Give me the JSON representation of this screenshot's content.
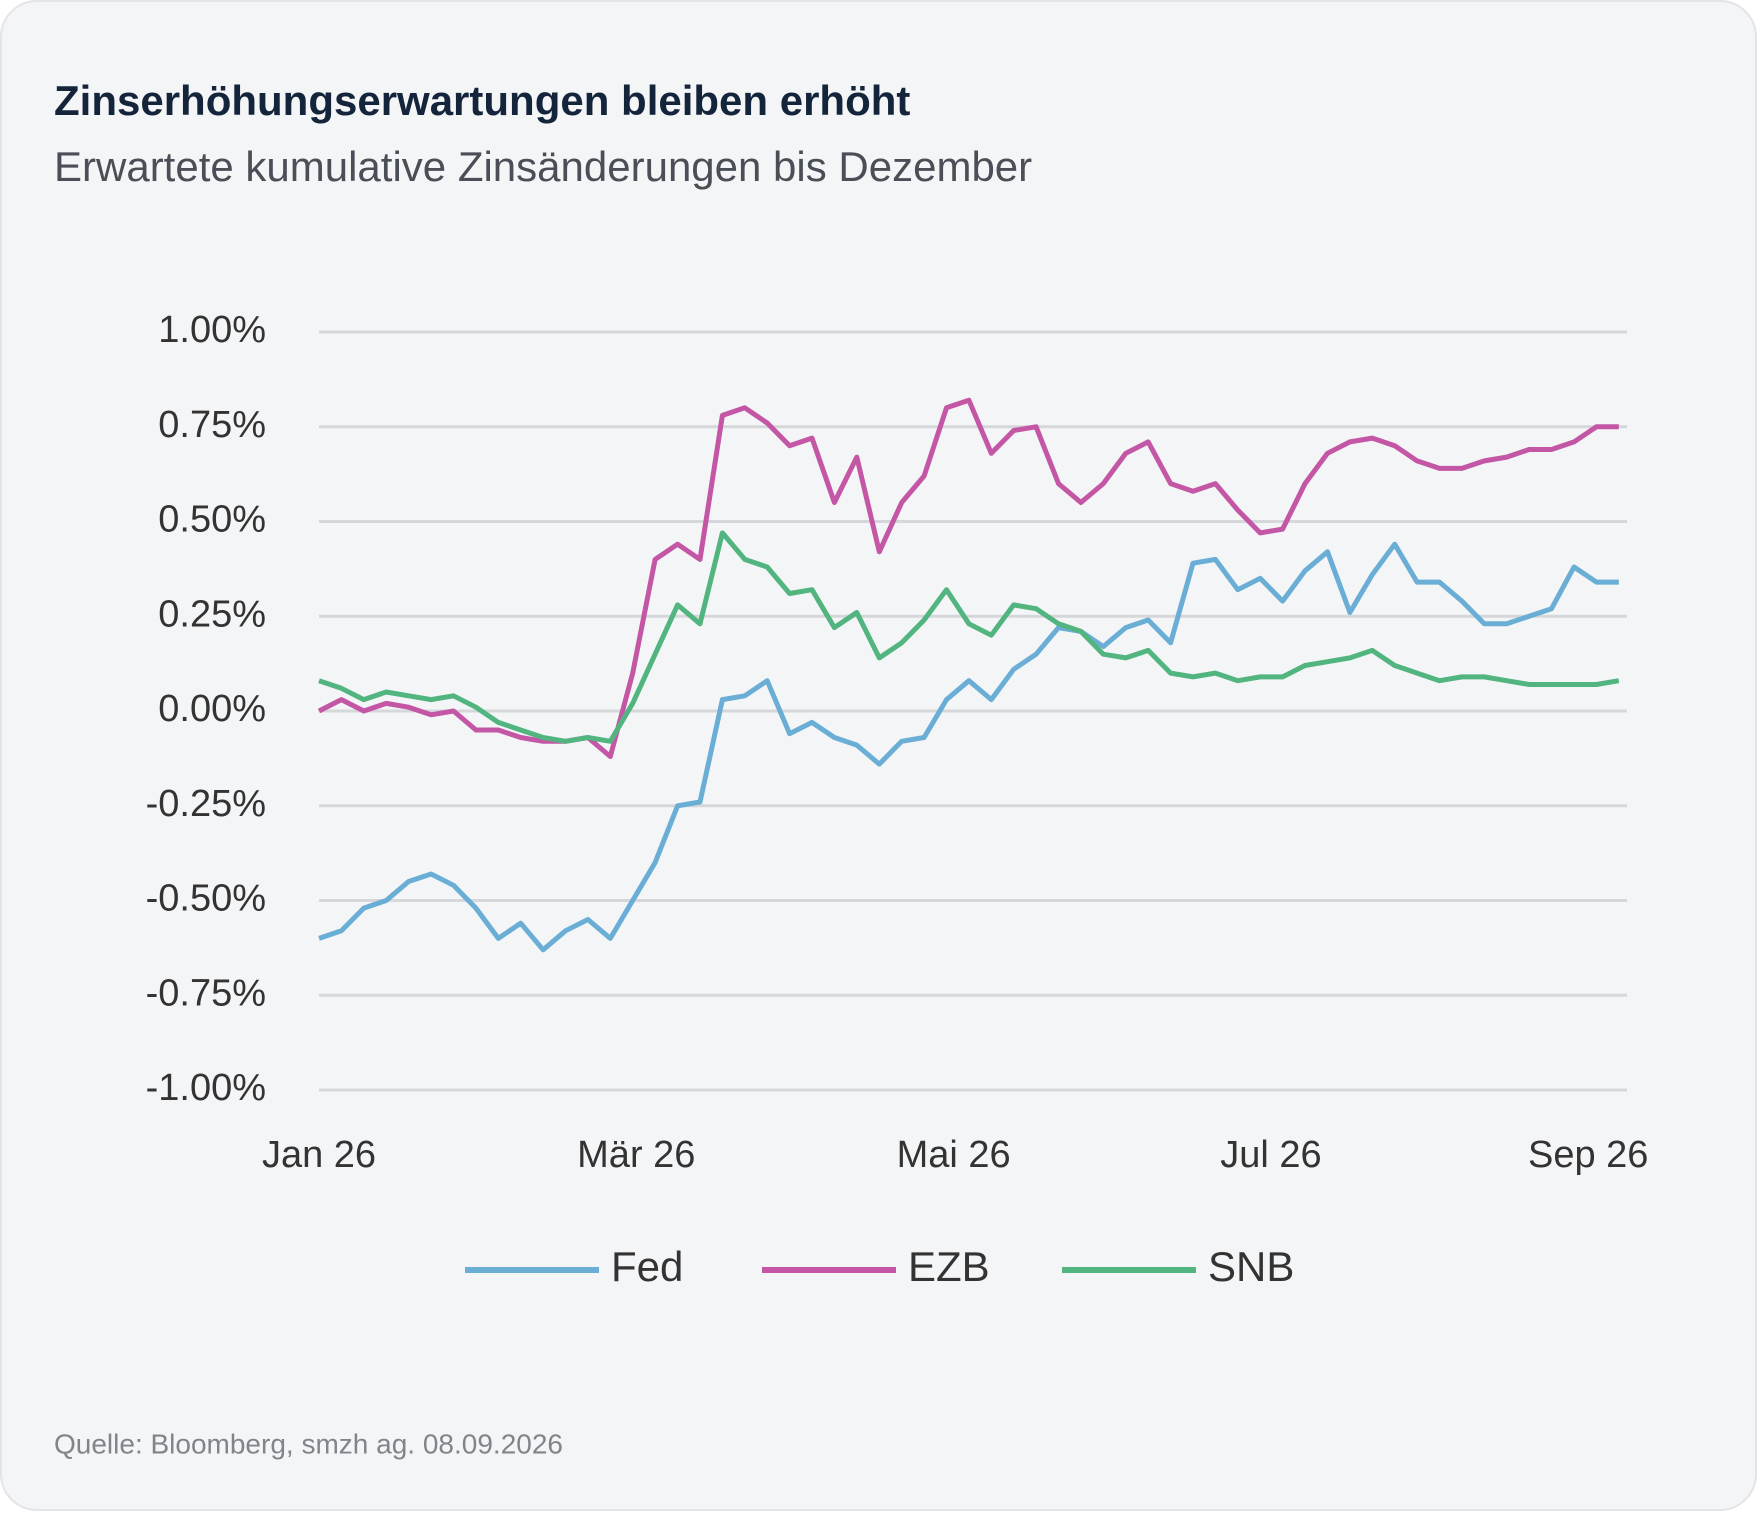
{
  "chart_data": {
    "type": "line",
    "title": "Zinserhöhungserwartungen bleiben erhöht",
    "subtitle": "Erwartete kumulative Zinsänderungen bis Dezember",
    "source": "Quelle: Bloomberg, smzh ag. 08.09.2026",
    "xticks": [
      "Jan 26",
      "Mär 26",
      "Mai 26",
      "Jul 26",
      "Sep 26"
    ],
    "ylim": [
      -1,
      1
    ],
    "yticks": [
      {
        "value": -1,
        "label": "-1.00%"
      },
      {
        "value": -0.75,
        "label": "-0.75%"
      },
      {
        "value": -0.5,
        "label": "-0.50%"
      },
      {
        "value": -0.25,
        "label": "-0.25%"
      },
      {
        "value": 0,
        "label": "0.00%"
      },
      {
        "value": 0.25,
        "label": "0.25%"
      },
      {
        "value": 0.5,
        "label": "0.50%"
      },
      {
        "value": 0.75,
        "label": "0.75%"
      },
      {
        "value": 1,
        "label": "1.00%"
      }
    ],
    "grid": true,
    "legend": "bottom",
    "series": [
      {
        "name": "Fed",
        "color": "#6aaed6",
        "values": [
          -0.6,
          -0.58,
          -0.52,
          -0.5,
          -0.45,
          -0.43,
          -0.46,
          -0.52,
          -0.6,
          -0.56,
          -0.63,
          -0.58,
          -0.55,
          -0.6,
          -0.5,
          -0.4,
          -0.25,
          -0.24,
          0.03,
          0.04,
          0.08,
          -0.06,
          -0.03,
          -0.07,
          -0.09,
          -0.14,
          -0.08,
          -0.07,
          0.03,
          0.08,
          0.03,
          0.11,
          0.15,
          0.22,
          0.21,
          0.17,
          0.22,
          0.24,
          0.18,
          0.39,
          0.4,
          0.32,
          0.35,
          0.29,
          0.37,
          0.42,
          0.26,
          0.36,
          0.44,
          0.34,
          0.34,
          0.29,
          0.23,
          0.23,
          0.25,
          0.27,
          0.38,
          0.34,
          0.34
        ]
      },
      {
        "name": "EZB",
        "color": "#c457a5",
        "values": [
          0.0,
          0.03,
          0.0,
          0.02,
          0.01,
          -0.01,
          0.0,
          -0.05,
          -0.05,
          -0.07,
          -0.08,
          -0.08,
          -0.07,
          -0.12,
          0.1,
          0.4,
          0.44,
          0.4,
          0.78,
          0.8,
          0.76,
          0.7,
          0.72,
          0.55,
          0.67,
          0.42,
          0.55,
          0.62,
          0.8,
          0.82,
          0.68,
          0.74,
          0.75,
          0.6,
          0.55,
          0.6,
          0.68,
          0.71,
          0.6,
          0.58,
          0.6,
          0.53,
          0.47,
          0.48,
          0.6,
          0.68,
          0.71,
          0.72,
          0.7,
          0.66,
          0.64,
          0.64,
          0.66,
          0.67,
          0.69,
          0.69,
          0.71,
          0.75,
          0.75
        ]
      },
      {
        "name": "SNB",
        "color": "#52b57f",
        "values": [
          0.08,
          0.06,
          0.03,
          0.05,
          0.04,
          0.03,
          0.04,
          0.01,
          -0.03,
          -0.05,
          -0.07,
          -0.08,
          -0.07,
          -0.08,
          0.02,
          0.15,
          0.28,
          0.23,
          0.47,
          0.4,
          0.38,
          0.31,
          0.32,
          0.22,
          0.26,
          0.14,
          0.18,
          0.24,
          0.32,
          0.23,
          0.2,
          0.28,
          0.27,
          0.23,
          0.21,
          0.15,
          0.14,
          0.16,
          0.1,
          0.09,
          0.1,
          0.08,
          0.09,
          0.09,
          0.12,
          0.13,
          0.14,
          0.16,
          0.12,
          0.1,
          0.08,
          0.09,
          0.09,
          0.08,
          0.07,
          0.07,
          0.07,
          0.07,
          0.08
        ]
      }
    ]
  }
}
